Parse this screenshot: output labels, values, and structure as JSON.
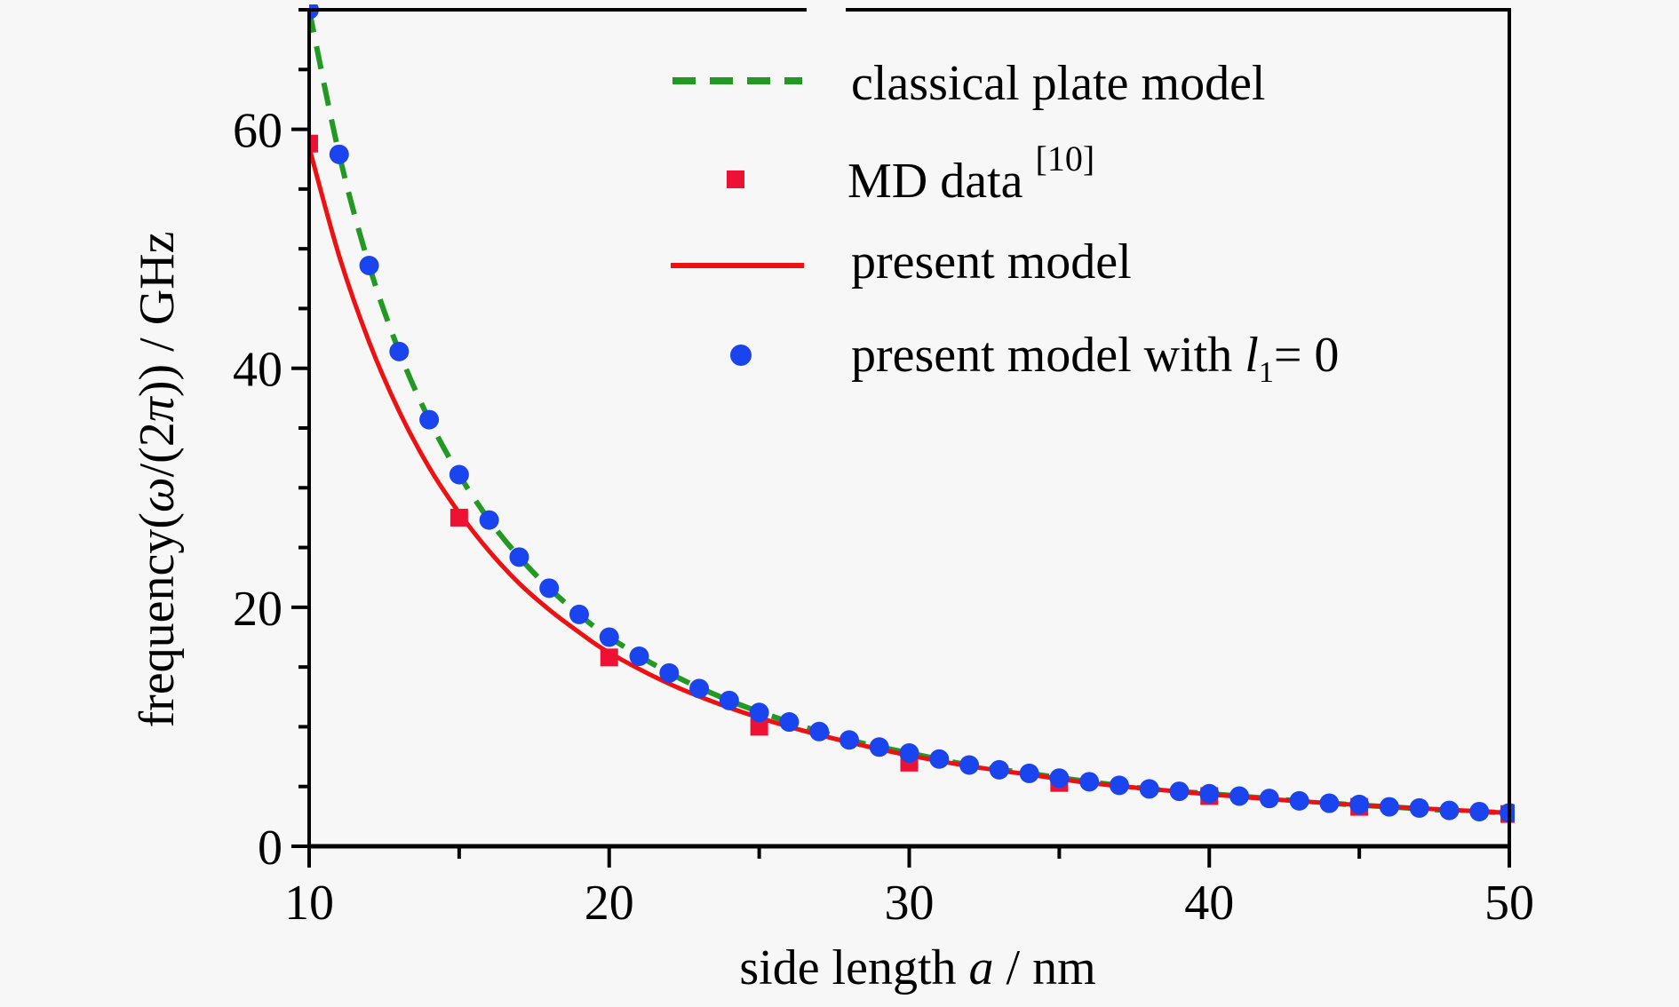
{
  "chart_data": {
    "type": "line",
    "title": "",
    "xlabel": "side length a / nm",
    "xlabel_parts": {
      "pre": "side length ",
      "var": "a",
      "post": " / nm"
    },
    "ylabel": "frequency(ω/(2π)) / GHz",
    "ylabel_parts": {
      "pre": "frequency(",
      "var": "ω",
      "mid": "/(2",
      "var2": "π",
      "post": ")) / GHz"
    },
    "xlim": [
      10,
      50
    ],
    "ylim": [
      0,
      70
    ],
    "x_ticks": [
      10,
      20,
      30,
      40,
      50
    ],
    "x_tick_labels": [
      "10",
      "20",
      "30",
      "40",
      "50"
    ],
    "x_minor_step": 5,
    "y_ticks": [
      0,
      20,
      40,
      60
    ],
    "y_tick_labels": [
      "0",
      "20",
      "40",
      "60"
    ],
    "y_minor_step": 5,
    "grid": false,
    "legend_position": "top-right",
    "series": [
      {
        "name": "classical plate model",
        "style": "dashed-line",
        "color": "#229922",
        "x": [
          10,
          11,
          12,
          13,
          14,
          15,
          16,
          17,
          18,
          19,
          20,
          22,
          24,
          26,
          28,
          30,
          32,
          34,
          36,
          38,
          40,
          42,
          44,
          46,
          48,
          50
        ],
        "values": [
          70.0,
          57.9,
          48.6,
          41.4,
          35.7,
          31.1,
          27.3,
          24.2,
          21.6,
          19.4,
          17.5,
          14.5,
          12.2,
          10.4,
          8.9,
          7.8,
          6.8,
          6.1,
          5.4,
          4.8,
          4.4,
          4.0,
          3.6,
          3.3,
          3.0,
          2.8
        ]
      },
      {
        "name": "MD data",
        "legend_superscript": "[10]",
        "style": "square-markers",
        "color": "#ee1133",
        "x": [
          10,
          15,
          20,
          25,
          30,
          35,
          40,
          45,
          50
        ],
        "values": [
          58.8,
          27.5,
          15.8,
          10.0,
          7.0,
          5.3,
          4.2,
          3.3,
          2.7
        ]
      },
      {
        "name": "present model",
        "style": "solid-line",
        "color": "#ee1111",
        "x": [
          10,
          11,
          12,
          13,
          14,
          15,
          16,
          17,
          18,
          19,
          20,
          22,
          24,
          26,
          28,
          30,
          32,
          34,
          36,
          38,
          40,
          42,
          44,
          46,
          48,
          50
        ],
        "values": [
          58.5,
          49.4,
          42.2,
          36.4,
          31.7,
          27.9,
          24.7,
          22.0,
          19.8,
          17.9,
          16.2,
          13.6,
          11.6,
          10.0,
          8.7,
          7.6,
          6.7,
          6.0,
          5.3,
          4.8,
          4.35,
          3.95,
          3.6,
          3.3,
          3.05,
          2.8
        ]
      },
      {
        "name": "present model with l1=0",
        "legend_parts": {
          "pre": "present model with ",
          "var": "l",
          "sub": "1",
          "post": "= 0"
        },
        "style": "circle-markers",
        "color": "#1a44ee",
        "x": [
          10,
          11,
          12,
          13,
          14,
          15,
          16,
          17,
          18,
          19,
          20,
          21,
          22,
          23,
          24,
          25,
          26,
          27,
          28,
          29,
          30,
          31,
          32,
          33,
          34,
          35,
          36,
          37,
          38,
          39,
          40,
          41,
          42,
          43,
          44,
          45,
          46,
          47,
          48,
          49,
          50
        ],
        "values": [
          70.0,
          57.9,
          48.6,
          41.4,
          35.7,
          31.1,
          27.3,
          24.2,
          21.6,
          19.4,
          17.5,
          15.9,
          14.5,
          13.2,
          12.2,
          11.2,
          10.4,
          9.6,
          8.9,
          8.3,
          7.8,
          7.3,
          6.8,
          6.4,
          6.1,
          5.7,
          5.4,
          5.1,
          4.8,
          4.6,
          4.4,
          4.2,
          4.0,
          3.8,
          3.6,
          3.5,
          3.3,
          3.2,
          3.0,
          2.9,
          2.8
        ]
      }
    ]
  }
}
